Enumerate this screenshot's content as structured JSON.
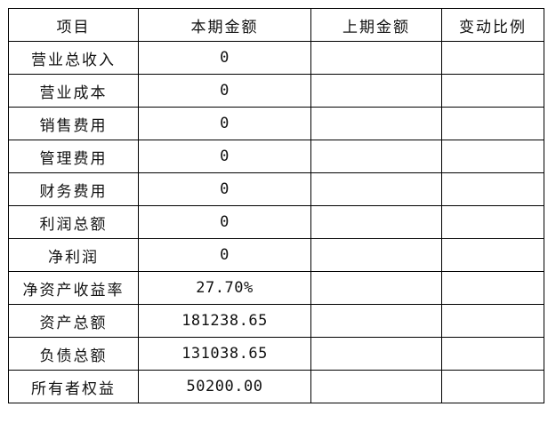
{
  "headers": [
    "项目",
    "本期金额",
    "上期金额",
    "变动比例"
  ],
  "rows": [
    {
      "item": "营业总收入",
      "current": "0",
      "previous": "",
      "change": ""
    },
    {
      "item": "营业成本",
      "current": "0",
      "previous": "",
      "change": ""
    },
    {
      "item": "销售费用",
      "current": "0",
      "previous": "",
      "change": ""
    },
    {
      "item": "管理费用",
      "current": "0",
      "previous": "",
      "change": ""
    },
    {
      "item": "财务费用",
      "current": "0",
      "previous": "",
      "change": ""
    },
    {
      "item": "利润总额",
      "current": "0",
      "previous": "",
      "change": ""
    },
    {
      "item": "净利润",
      "current": "0",
      "previous": "",
      "change": ""
    },
    {
      "item": "净资产收益率",
      "current": "27.70%",
      "previous": "",
      "change": ""
    },
    {
      "item": "资产总额",
      "current": "181238.65",
      "previous": "",
      "change": ""
    },
    {
      "item": "负债总额",
      "current": "131038.65",
      "previous": "",
      "change": ""
    },
    {
      "item": "所有者权益",
      "current": "50200.00",
      "previous": "",
      "change": ""
    }
  ]
}
